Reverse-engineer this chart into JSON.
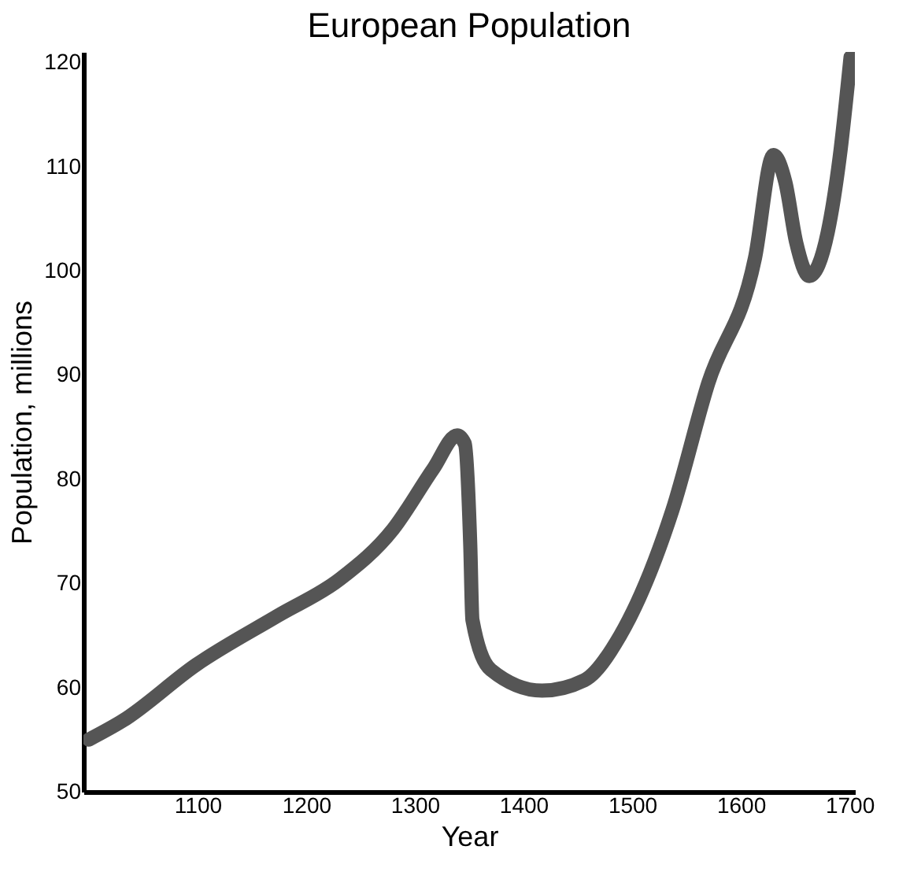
{
  "chart_data": {
    "type": "line",
    "title": "European Population",
    "xlabel": "Year",
    "ylabel": "Population, millions",
    "x": [
      1000,
      1031,
      1099,
      1174,
      1231,
      1280,
      1317,
      1339,
      1346,
      1351,
      1353,
      1370,
      1417,
      1456,
      1489,
      1537,
      1570,
      1613,
      1630,
      1641,
      1651,
      1663,
      1680,
      1691,
      1701
    ],
    "series": [
      {
        "color": "#555555",
        "values": [
          55,
          56.8,
          62.2,
          66.9,
          70.4,
          75.2,
          81,
          84.2,
          83.4,
          73.7,
          66.5,
          61.7,
          59.7,
          60.7,
          65,
          77,
          89.2,
          101.2,
          111.1,
          108.5,
          102.7,
          99.5,
          103.7,
          110.9,
          120.5
        ]
      }
    ],
    "xlim": [
      995,
      1705
    ],
    "xticks": [
      1100,
      1200,
      1300,
      1400,
      1500,
      1600,
      1700
    ],
    "ylim": [
      50,
      121
    ],
    "yticks": [
      50,
      60,
      70,
      80,
      90,
      100,
      110,
      120
    ],
    "grid": false,
    "line_style": "solid"
  }
}
